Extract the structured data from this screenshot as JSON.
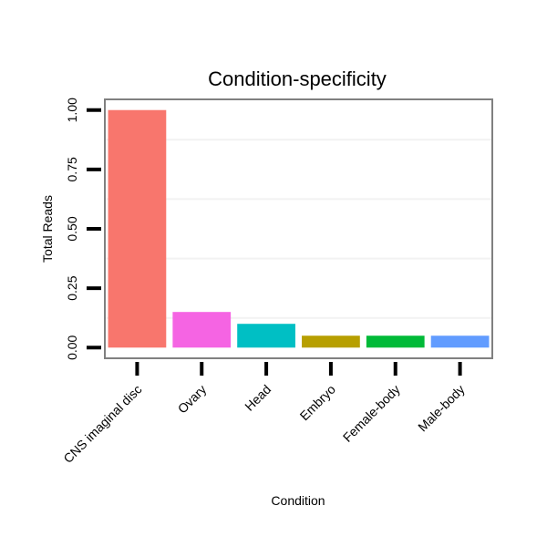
{
  "chart_data": {
    "type": "bar",
    "title": "Condition-specificity",
    "xlabel": "Condition",
    "ylabel": "Total Reads",
    "categories": [
      "CNS imaginal disc",
      "Ovary",
      "Head",
      "Embryo",
      "Female-body",
      "Male-body"
    ],
    "values": [
      1.0,
      0.15,
      0.1,
      0.05,
      0.05,
      0.05
    ],
    "colors": [
      "#F8766D",
      "#F564E3",
      "#00BFC4",
      "#B79F00",
      "#00BA38",
      "#619CFF"
    ],
    "ylim": [
      -0.045,
      1.045
    ],
    "yticks": [
      0.0,
      0.25,
      0.5,
      0.75,
      1.0
    ],
    "ytick_labels": [
      "0.00",
      "0.25",
      "0.50",
      "0.75",
      "1.00"
    ],
    "grid": true,
    "legend": "none"
  }
}
